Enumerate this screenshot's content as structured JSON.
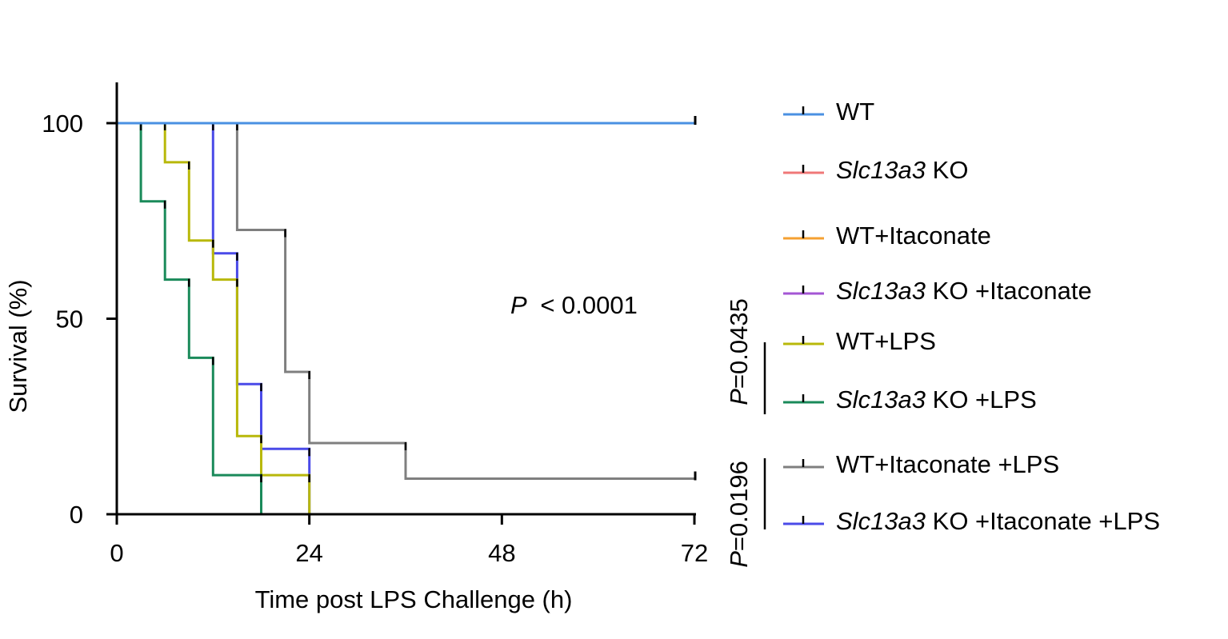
{
  "chart_data": {
    "type": "line",
    "subtype": "kaplan-meier",
    "title": "",
    "xlabel": "Time post LPS Challenge (h)",
    "ylabel": "Survival (%)",
    "xlim": [
      0,
      72
    ],
    "ylim": [
      0,
      100
    ],
    "xticks": [
      0,
      24,
      48,
      72
    ],
    "yticks": [
      0,
      50,
      100
    ],
    "grid": false,
    "legend_position": "right",
    "annotations": {
      "overall_p": "< 0.0001",
      "overall_p_prefix": "P",
      "pair_p_1": "P=0.0435",
      "pair_p_2": "P=0.0196"
    },
    "series": [
      {
        "name_italic": "",
        "name_rest": "WT",
        "color": "#4a90e2",
        "steps": [
          [
            0,
            100
          ],
          [
            72,
            100
          ]
        ],
        "censor": [
          [
            72,
            100
          ]
        ]
      },
      {
        "name_italic": "Slc13a3",
        "name_rest": " KO",
        "color": "#f07878",
        "steps": [
          [
            0,
            100
          ],
          [
            72,
            100
          ]
        ],
        "censor": [
          [
            72,
            100
          ]
        ]
      },
      {
        "name_italic": "",
        "name_rest": "WT+Itaconate",
        "color": "#f5a031",
        "steps": [
          [
            0,
            100
          ],
          [
            72,
            100
          ]
        ],
        "censor": [
          [
            72,
            100
          ]
        ]
      },
      {
        "name_italic": "Slc13a3",
        "name_rest": " KO +Itaconate",
        "color": "#a456d4",
        "steps": [
          [
            0,
            100
          ],
          [
            72,
            100
          ]
        ],
        "censor": [
          [
            72,
            100
          ]
        ]
      },
      {
        "name_italic": "",
        "name_rest": "WT+LPS",
        "color": "#b8b80a",
        "steps": [
          [
            0,
            100
          ],
          [
            6,
            100
          ],
          [
            6,
            90
          ],
          [
            9,
            90
          ],
          [
            9,
            70
          ],
          [
            12,
            70
          ],
          [
            12,
            60
          ],
          [
            15,
            60
          ],
          [
            15,
            20
          ],
          [
            18,
            20
          ],
          [
            18,
            10
          ],
          [
            24,
            10
          ],
          [
            24,
            0
          ]
        ],
        "censor": []
      },
      {
        "name_italic": "Slc13a3",
        "name_rest": " KO +LPS",
        "color": "#1a8a5a",
        "steps": [
          [
            0,
            100
          ],
          [
            3,
            100
          ],
          [
            3,
            80
          ],
          [
            6,
            80
          ],
          [
            6,
            60
          ],
          [
            9,
            60
          ],
          [
            9,
            40
          ],
          [
            12,
            40
          ],
          [
            12,
            10
          ],
          [
            18,
            10
          ],
          [
            18,
            0
          ]
        ],
        "censor": []
      },
      {
        "name_italic": "",
        "name_rest": "WT+Itaconate +LPS",
        "color": "#7f7f7f",
        "steps": [
          [
            0,
            100
          ],
          [
            15,
            100
          ],
          [
            15,
            72.7
          ],
          [
            21,
            72.7
          ],
          [
            21,
            36.4
          ],
          [
            24,
            36.4
          ],
          [
            24,
            18.2
          ],
          [
            36,
            18.2
          ],
          [
            36,
            9.1
          ],
          [
            72,
            9.1
          ]
        ],
        "censor": [
          [
            72,
            9.1
          ]
        ]
      },
      {
        "name_italic": "Slc13a3",
        "name_rest": " KO +Itaconate +LPS",
        "color": "#4a4ae8",
        "steps": [
          [
            0,
            100
          ],
          [
            12,
            100
          ],
          [
            12,
            66.7
          ],
          [
            15,
            66.7
          ],
          [
            15,
            33.3
          ],
          [
            18,
            33.3
          ],
          [
            18,
            16.7
          ],
          [
            24,
            16.7
          ],
          [
            24,
            0
          ]
        ],
        "censor": []
      }
    ]
  }
}
